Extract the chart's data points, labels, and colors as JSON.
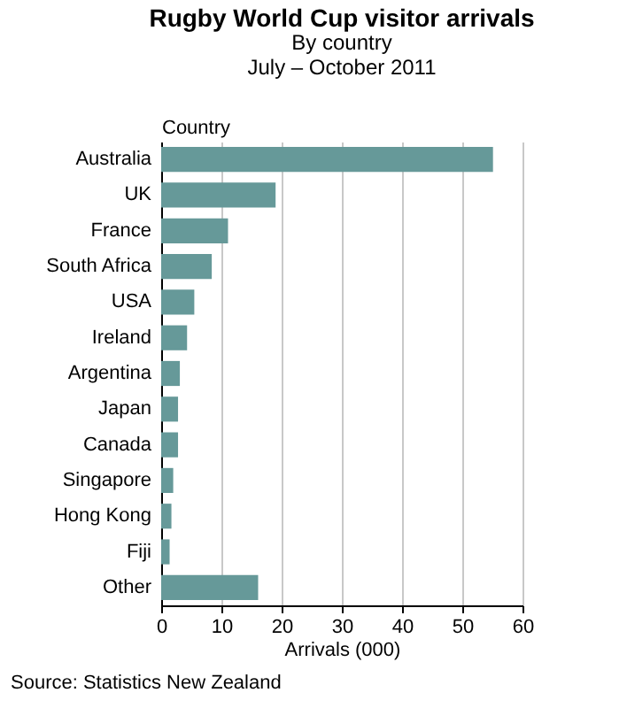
{
  "chart_data": {
    "type": "bar",
    "orientation": "horizontal",
    "title": "Rugby World Cup visitor arrivals",
    "subtitle": "By country\nJuly – October 2011",
    "xlabel": "Arrivals (000)",
    "ylabel": "Country",
    "categories": [
      "Australia",
      "UK",
      "France",
      "South Africa",
      "USA",
      "Ireland",
      "Argentina",
      "Japan",
      "Canada",
      "Singapore",
      "Hong Kong",
      "Fiji",
      "Other"
    ],
    "values": [
      55.1,
      19.0,
      11.1,
      8.4,
      5.5,
      4.3,
      3.1,
      2.8,
      2.8,
      2.0,
      1.7,
      1.4,
      16.1
    ],
    "color": "#669999",
    "xlim": [
      0,
      60
    ],
    "xticks": [
      0,
      10,
      20,
      30,
      40,
      50,
      60
    ],
    "grid": "x",
    "annotations": [
      "Source: Statistics New Zealand"
    ]
  }
}
